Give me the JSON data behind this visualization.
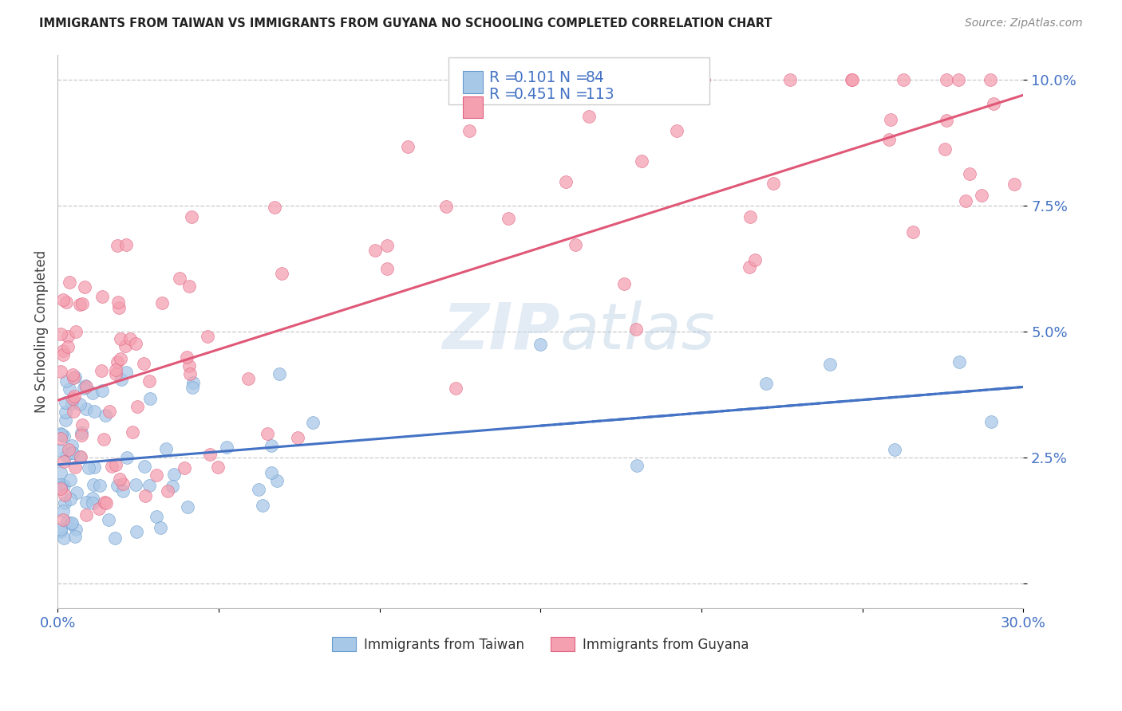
{
  "title": "IMMIGRANTS FROM TAIWAN VS IMMIGRANTS FROM GUYANA NO SCHOOLING COMPLETED CORRELATION CHART",
  "source": "Source: ZipAtlas.com",
  "ylabel": "No Schooling Completed",
  "xlabel_taiwan": "Immigrants from Taiwan",
  "xlabel_guyana": "Immigrants from Guyana",
  "taiwan_R": 0.101,
  "taiwan_N": 84,
  "guyana_R": 0.451,
  "guyana_N": 113,
  "taiwan_color": "#a8c8e8",
  "guyana_color": "#f4a0b0",
  "taiwan_edge_color": "#6699cc",
  "guyana_edge_color": "#e06080",
  "taiwan_line_color": "#4472c4",
  "guyana_line_color": "#e05878",
  "legend_color": "#4472c4",
  "watermark_color": "#c8d8e8",
  "xlim": [
    0.0,
    0.3
  ],
  "ylim": [
    -0.005,
    0.105
  ],
  "yticks": [
    0.0,
    0.025,
    0.05,
    0.075,
    0.1
  ],
  "ytick_labels": [
    "",
    "2.5%",
    "5.0%",
    "7.5%",
    "10.0%"
  ],
  "xticks": [
    0.0,
    0.05,
    0.1,
    0.15,
    0.2,
    0.25,
    0.3
  ],
  "xtick_labels": [
    "0.0%",
    "",
    "",
    "",
    "",
    "",
    "30.0%"
  ],
  "background_color": "#ffffff",
  "grid_color": "#c8c8c8"
}
